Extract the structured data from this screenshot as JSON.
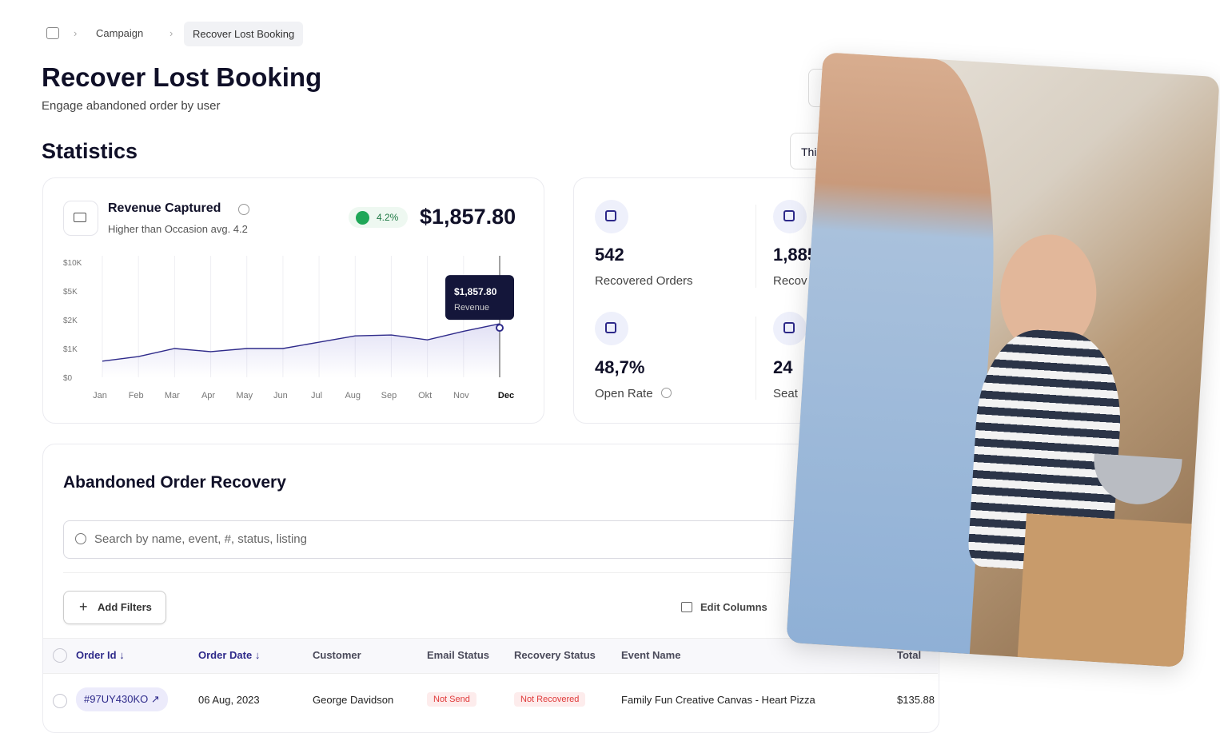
{
  "breadcrumb": [
    "Campaign",
    "Recover Lost Booking"
  ],
  "header": {
    "title": "Recover Lost Booking",
    "subtitle": "Engage abandoned order by user"
  },
  "statistics": {
    "title": "Statistics",
    "period": "Thi"
  },
  "revenue": {
    "title": "Revenue Captured",
    "subtitle": "Higher than Occasion avg. 4.2",
    "change": "4.2%",
    "total": "$1,857.80"
  },
  "chart_data": {
    "type": "line",
    "categories": [
      "Jan",
      "Feb",
      "Mar",
      "Apr",
      "May",
      "Jun",
      "Jul",
      "Aug",
      "Sep",
      "Okt",
      "Nov",
      "Dec"
    ],
    "series": [
      {
        "name": "Revenue",
        "color": "#2e2a8a",
        "values": [
          560,
          720,
          1000,
          890,
          1000,
          1000,
          1220,
          1440,
          1470,
          1300,
          1600,
          1857.8
        ],
        "value_labels": [
          null,
          null,
          null,
          null,
          null,
          null,
          null,
          null,
          null,
          null,
          null,
          "$1,857.80"
        ]
      }
    ],
    "ylim": [
      0,
      10000
    ],
    "yticks": [
      {
        "value": 0,
        "label": "$0"
      },
      {
        "value": 1000,
        "label": "$1K"
      },
      {
        "value": 2000,
        "label": "$2K"
      },
      {
        "value": 5000,
        "label": "$5K"
      },
      {
        "value": 10000,
        "label": "$10K"
      }
    ],
    "grid": "x"
  },
  "kpis": [
    {
      "value": "542",
      "label": "Recovered Orders"
    },
    {
      "value": "1,885",
      "label": "Recov"
    },
    {
      "value": "48,7%",
      "label": "Open Rate"
    },
    {
      "value": "24",
      "label": "Seat"
    }
  ],
  "table": {
    "title": "Abandoned Order Recovery",
    "search_placeholder": "Search by name, event, #, status, listing",
    "add_filters": "Add Filters",
    "edit_columns": "Edit Columns",
    "columns": [
      "Order Id",
      "Order Date",
      "Customer",
      "Email Status",
      "Recovery Status",
      "Event Name",
      "Total"
    ],
    "rows": [
      [
        "#97UY430KO",
        "06 Aug, 2023",
        "George Davidson",
        "Not Send",
        "Not Recovered",
        "Family Fun Creative Canvas - Heart Pizza",
        "$135.88"
      ]
    ]
  }
}
